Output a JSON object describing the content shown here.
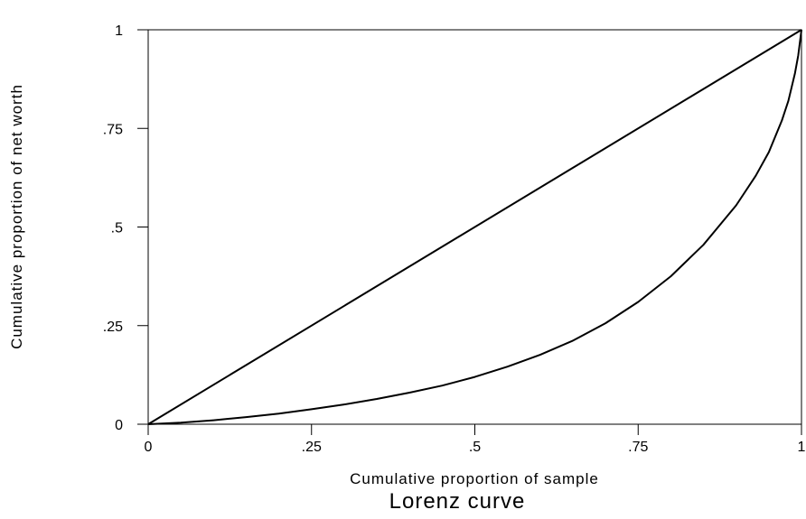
{
  "chart_data": {
    "type": "line",
    "caption": "Lorenz curve",
    "xlabel": "Cumulative proportion of sample",
    "ylabel": "Cumulative proportion of net worth",
    "xlim": [
      0,
      1
    ],
    "ylim": [
      0,
      1
    ],
    "x_ticks": [
      {
        "value": 0,
        "label": "0"
      },
      {
        "value": 0.25,
        "label": ".25"
      },
      {
        "value": 0.5,
        "label": ".5"
      },
      {
        "value": 0.75,
        "label": ".75"
      },
      {
        "value": 1,
        "label": "1"
      }
    ],
    "y_ticks": [
      {
        "value": 0,
        "label": "0"
      },
      {
        "value": 0.25,
        "label": ".25"
      },
      {
        "value": 0.5,
        "label": ".5"
      },
      {
        "value": 0.75,
        "label": ".75"
      },
      {
        "value": 1,
        "label": "1"
      }
    ],
    "grid": false,
    "series": [
      {
        "x": [
          0,
          1
        ],
        "y": [
          0,
          1
        ]
      },
      {
        "x": [
          0,
          0.05,
          0.1,
          0.15,
          0.2,
          0.25,
          0.3,
          0.35,
          0.4,
          0.45,
          0.5,
          0.55,
          0.6,
          0.65,
          0.7,
          0.75,
          0.8,
          0.85,
          0.9,
          0.93,
          0.95,
          0.97,
          0.98,
          0.99,
          0.995,
          1.0
        ],
        "y": [
          0,
          0.004,
          0.01,
          0.018,
          0.027,
          0.038,
          0.05,
          0.064,
          0.08,
          0.098,
          0.12,
          0.146,
          0.176,
          0.212,
          0.256,
          0.31,
          0.375,
          0.455,
          0.555,
          0.63,
          0.69,
          0.77,
          0.82,
          0.89,
          0.935,
          1.0
        ]
      }
    ]
  }
}
